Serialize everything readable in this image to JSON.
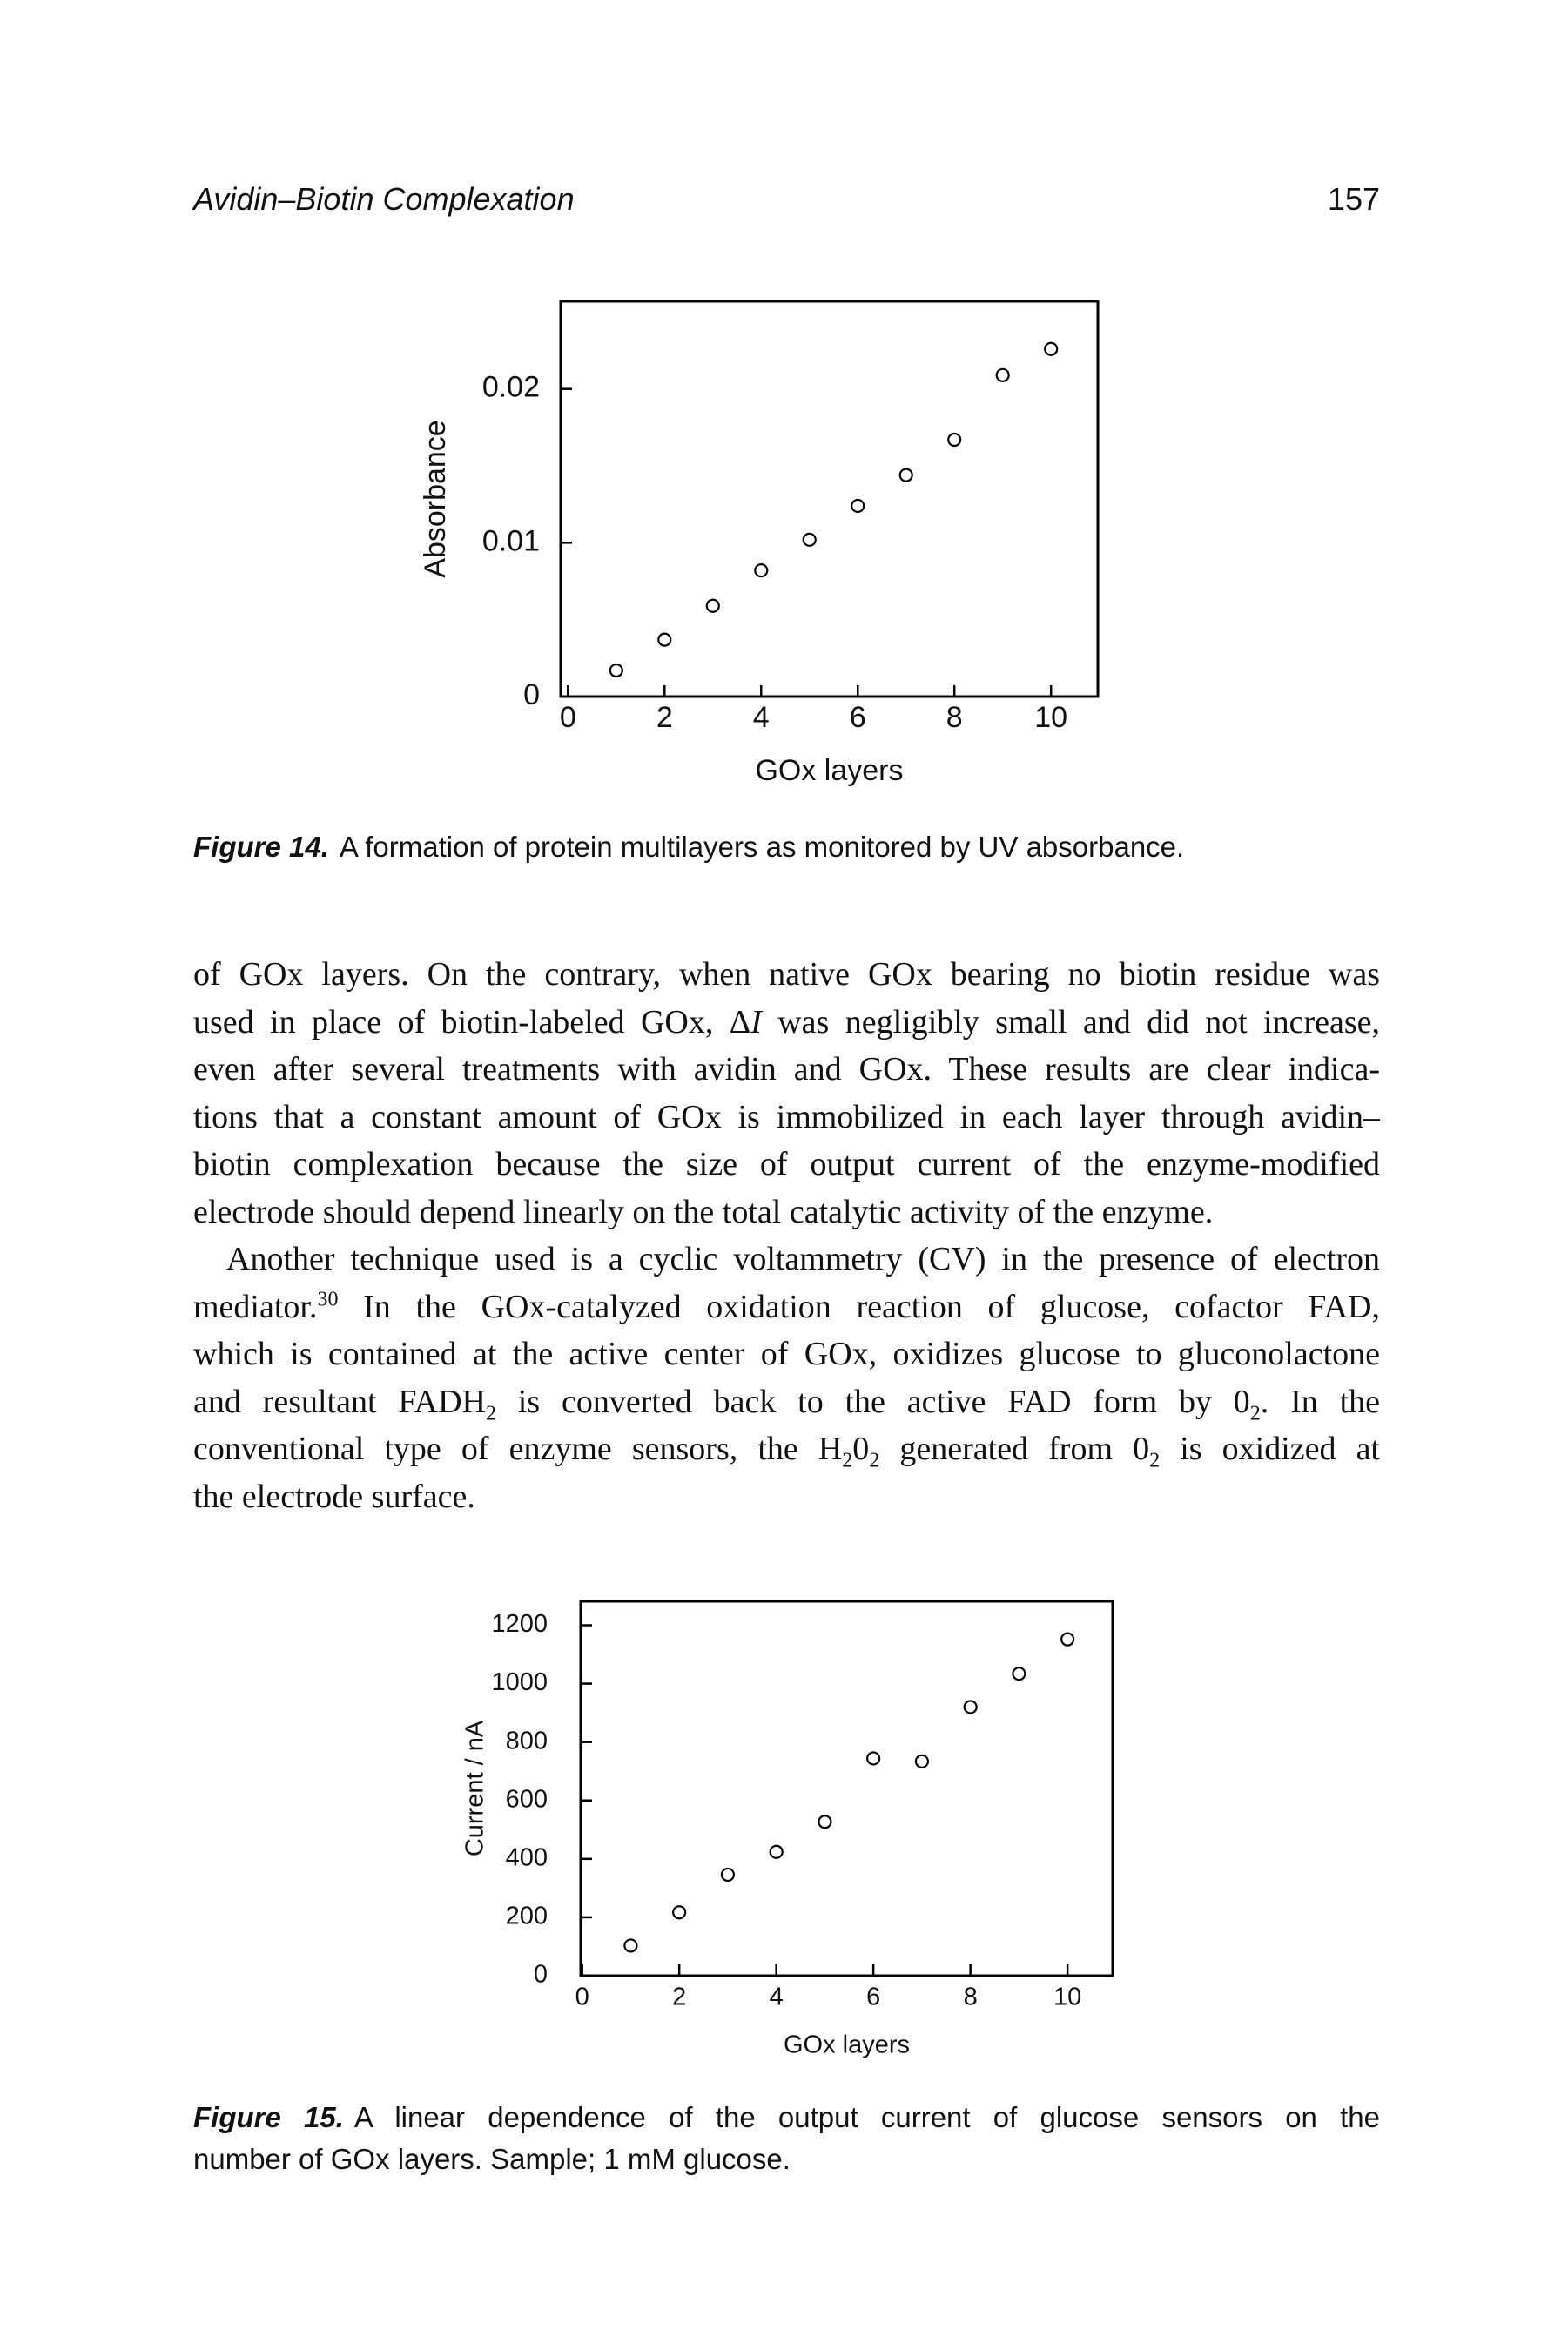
{
  "header": {
    "title": "Avidin–Biotin Complexation",
    "page": "157"
  },
  "chart_data": [
    {
      "type": "scatter",
      "x_label": "GOx layers",
      "y_label": "Absorbance",
      "marker": "open-circle",
      "color": "#000000",
      "x": [
        1,
        2,
        3,
        4,
        5,
        6,
        7,
        8,
        9,
        10
      ],
      "values": [
        0.0017,
        0.0037,
        0.0059,
        0.0082,
        0.0102,
        0.0124,
        0.0144,
        0.0167,
        0.0209,
        0.0226
      ],
      "xlim": [
        -0.15,
        10.97
      ],
      "ylim": [
        0,
        0.0257
      ],
      "xticks": [
        0,
        2,
        4,
        6,
        8,
        10
      ],
      "yticks": [
        0,
        0.01,
        0.02
      ]
    },
    {
      "type": "scatter",
      "x_label": "GOx layers",
      "y_label": "Current / nA",
      "marker": "open-circle",
      "color": "#000000",
      "x": [
        1,
        2,
        3,
        4,
        5,
        6,
        7,
        8,
        9,
        10
      ],
      "values": [
        103,
        217,
        346,
        424,
        527,
        744,
        734,
        920,
        1034,
        1152
      ],
      "xlim": [
        -0.03,
        10.93
      ],
      "ylim": [
        0,
        1282
      ],
      "xticks": [
        0,
        2,
        4,
        6,
        8,
        10
      ],
      "yticks": [
        0,
        200,
        400,
        600,
        800,
        1000,
        1200
      ]
    }
  ],
  "figures": [
    {
      "label": "Figure 14.",
      "caption": [
        "A formation of protein multilayers as monitored by UV absorbance."
      ]
    },
    {
      "label": "Figure 15.",
      "caption": [
        "A linear dependence of the output current of glucose sensors on the",
        "number of GOx layers. Sample; 1 mM glucose."
      ]
    }
  ],
  "body": {
    "paragraphs": [
      [
        [
          {
            "text": "of GOx layers. On the contrary, when native GOx bearing no biotin residue was"
          }
        ],
        [
          {
            "text": "used in place of biotin-labeled GOx, Δ"
          },
          {
            "italic": "I"
          },
          {
            "text": " was negligibly small and did not increase,"
          }
        ],
        [
          {
            "text": "even after several treatments with avidin and GOx. These results are clear indica-"
          }
        ],
        [
          {
            "text": "tions that a constant amount of GOx is immobilized in each layer through avidin–"
          }
        ],
        [
          {
            "text": "biotin complexation because the size of output current of the enzyme-modified"
          }
        ],
        [
          {
            "text": "electrode should depend linearly on the total catalytic activity of the enzyme."
          }
        ]
      ],
      [
        [
          {
            "text": "Another technique used is a cyclic voltammetry (CV) in the presence of electron"
          }
        ],
        [
          {
            "text": "mediator."
          },
          {
            "sup": "30"
          },
          {
            "text": " In the GOx-catalyzed oxidation reaction of glucose, cofactor FAD,"
          }
        ],
        [
          {
            "text": "which is contained at the active center of GOx, oxidizes glucose to gluconolactone"
          }
        ],
        [
          {
            "text": "and resultant FADH"
          },
          {
            "sub": "2"
          },
          {
            "text": " is converted back to the active FAD form by 0"
          },
          {
            "sub": "2"
          },
          {
            "text": ". In the"
          }
        ],
        [
          {
            "text": "conventional type of enzyme sensors, the H"
          },
          {
            "sub": "2"
          },
          {
            "text": "0"
          },
          {
            "sub": "2"
          },
          {
            "text": " generated from 0"
          },
          {
            "sub": "2"
          },
          {
            "text": " is oxidized at"
          }
        ],
        [
          {
            "text": "the electrode surface."
          }
        ]
      ]
    ]
  }
}
